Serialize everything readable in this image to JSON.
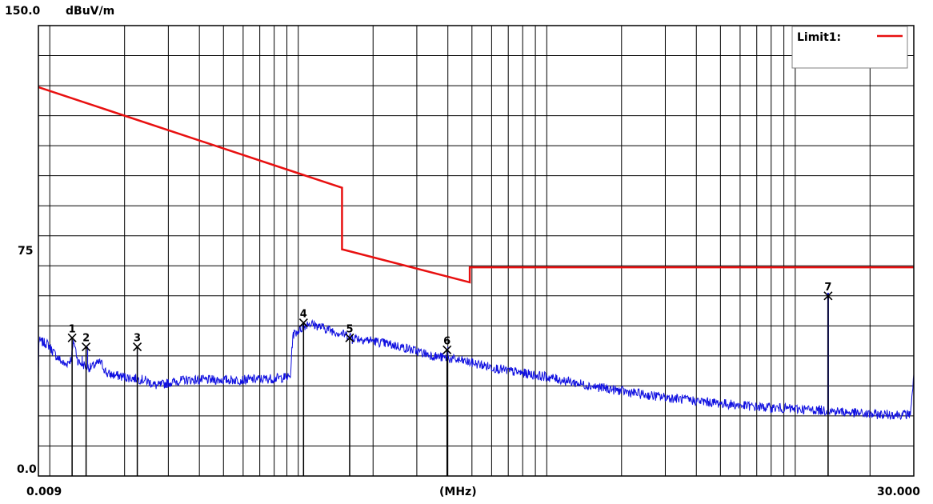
{
  "chart_data": {
    "type": "line",
    "y_unit": "dBuV/m",
    "x_unit": "(MHz)",
    "x_scale": "log",
    "xlim": [
      0.009,
      30.0
    ],
    "ylim": [
      0.0,
      150.0
    ],
    "y_tick_labels": [
      "150.0",
      "75",
      "0.0"
    ],
    "x_tick_labels": [
      "0.009",
      "30.000"
    ],
    "grid": true,
    "legend": {
      "position": "top-right",
      "label": "Limit1:",
      "color": "#e81010"
    },
    "limit_line": {
      "name": "Limit1",
      "color": "#e81010",
      "points": [
        [
          0.009,
          129.5
        ],
        [
          0.15,
          96
        ],
        [
          0.15,
          75.5
        ],
        [
          0.49,
          64.5
        ],
        [
          0.49,
          69.5
        ],
        [
          30.0,
          69.5
        ]
      ]
    },
    "trace": {
      "color": "#1010e0",
      "points": [
        [
          0.009,
          45
        ],
        [
          0.0098,
          44
        ],
        [
          0.0106,
          40
        ],
        [
          0.0115,
          37
        ],
        [
          0.0122,
          39
        ],
        [
          0.0125,
          45
        ],
        [
          0.013,
          38
        ],
        [
          0.0145,
          36
        ],
        [
          0.016,
          38
        ],
        [
          0.017,
          34
        ],
        [
          0.02,
          33
        ],
        [
          0.024,
          32
        ],
        [
          0.027,
          30
        ],
        [
          0.03,
          31
        ],
        [
          0.035,
          32
        ],
        [
          0.045,
          32
        ],
        [
          0.06,
          32
        ],
        [
          0.08,
          32.5
        ],
        [
          0.093,
          33
        ],
        [
          0.095,
          47
        ],
        [
          0.11,
          51
        ],
        [
          0.13,
          49
        ],
        [
          0.17,
          46
        ],
        [
          0.2,
          45
        ],
        [
          0.26,
          43
        ],
        [
          0.35,
          40
        ],
        [
          0.48,
          38
        ],
        [
          0.7,
          35
        ],
        [
          1.0,
          33
        ],
        [
          1.5,
          30
        ],
        [
          2.5,
          27
        ],
        [
          4.0,
          25
        ],
        [
          7.0,
          23
        ],
        [
          12.0,
          22
        ],
        [
          15.0,
          21.5
        ],
        [
          20.0,
          20.5
        ],
        [
          29.0,
          20.5
        ],
        [
          30.0,
          33
        ]
      ]
    },
    "spikes": [
      {
        "x": 0.0135,
        "y": 40
      },
      {
        "x": 0.0142,
        "y": 43
      },
      {
        "x": 0.0225,
        "y": 42
      },
      {
        "x": 0.16,
        "y": 46
      },
      {
        "x": 0.165,
        "y": 44
      },
      {
        "x": 0.4,
        "y": 43
      },
      {
        "x": 13.56,
        "y": 61
      }
    ],
    "markers": [
      {
        "label": "1",
        "x": 0.0123,
        "y": 46
      },
      {
        "label": "2",
        "x": 0.014,
        "y": 43
      },
      {
        "label": "3",
        "x": 0.0225,
        "y": 43
      },
      {
        "label": "4",
        "x": 0.105,
        "y": 51
      },
      {
        "label": "5",
        "x": 0.161,
        "y": 46
      },
      {
        "label": "6",
        "x": 0.397,
        "y": 42
      },
      {
        "label": "7",
        "x": 13.56,
        "y": 60
      }
    ]
  }
}
